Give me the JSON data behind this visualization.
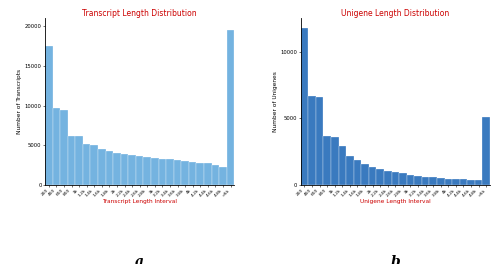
{
  "transcript_values": [
    17500,
    9700,
    9500,
    6200,
    6100,
    5100,
    5000,
    4500,
    4300,
    4000,
    3900,
    3700,
    3600,
    3500,
    3400,
    3300,
    3200,
    3100,
    3000,
    2900,
    2800,
    2700,
    2500,
    2200,
    19500
  ],
  "unigene_values": [
    11800,
    6700,
    6600,
    3700,
    3600,
    2900,
    2200,
    1900,
    1600,
    1350,
    1200,
    1050,
    950,
    850,
    750,
    680,
    620,
    560,
    500,
    450,
    420,
    400,
    380,
    350,
    5100
  ],
  "x_labels": [
    "200",
    "400",
    "600",
    "800",
    "1k",
    "1.2k",
    "1.4k",
    "1.6k",
    "1.8k",
    "2k",
    "2.2k",
    "2.4k",
    "2.6k",
    "2.8k",
    "3k",
    "3.2k",
    "3.4k",
    "3.6k",
    "3.8k",
    "4k",
    "4.2k",
    "4.4k",
    "4.6k",
    "4.8k",
    ">5k"
  ],
  "transcript_color": "#74b3e0",
  "unigene_color": "#3a7abf",
  "transcript_title": "Transcript Length Distribution",
  "unigene_title": "Unigene Length Distribution",
  "transcript_xlabel": "Transcript Length Interval",
  "unigene_xlabel": "Unigene Length Interval",
  "transcript_ylabel": "Number of Transcripts",
  "unigene_ylabel": "Number of Unigenes",
  "title_color": "#cc0000",
  "xlabel_color": "#cc0000",
  "label_a": "a",
  "label_b": "b",
  "transcript_yticks": [
    0,
    5000,
    10000,
    15000,
    20000
  ],
  "unigene_yticks": [
    0,
    5000,
    10000
  ],
  "transcript_ylim": 21000,
  "unigene_ylim": 12500
}
